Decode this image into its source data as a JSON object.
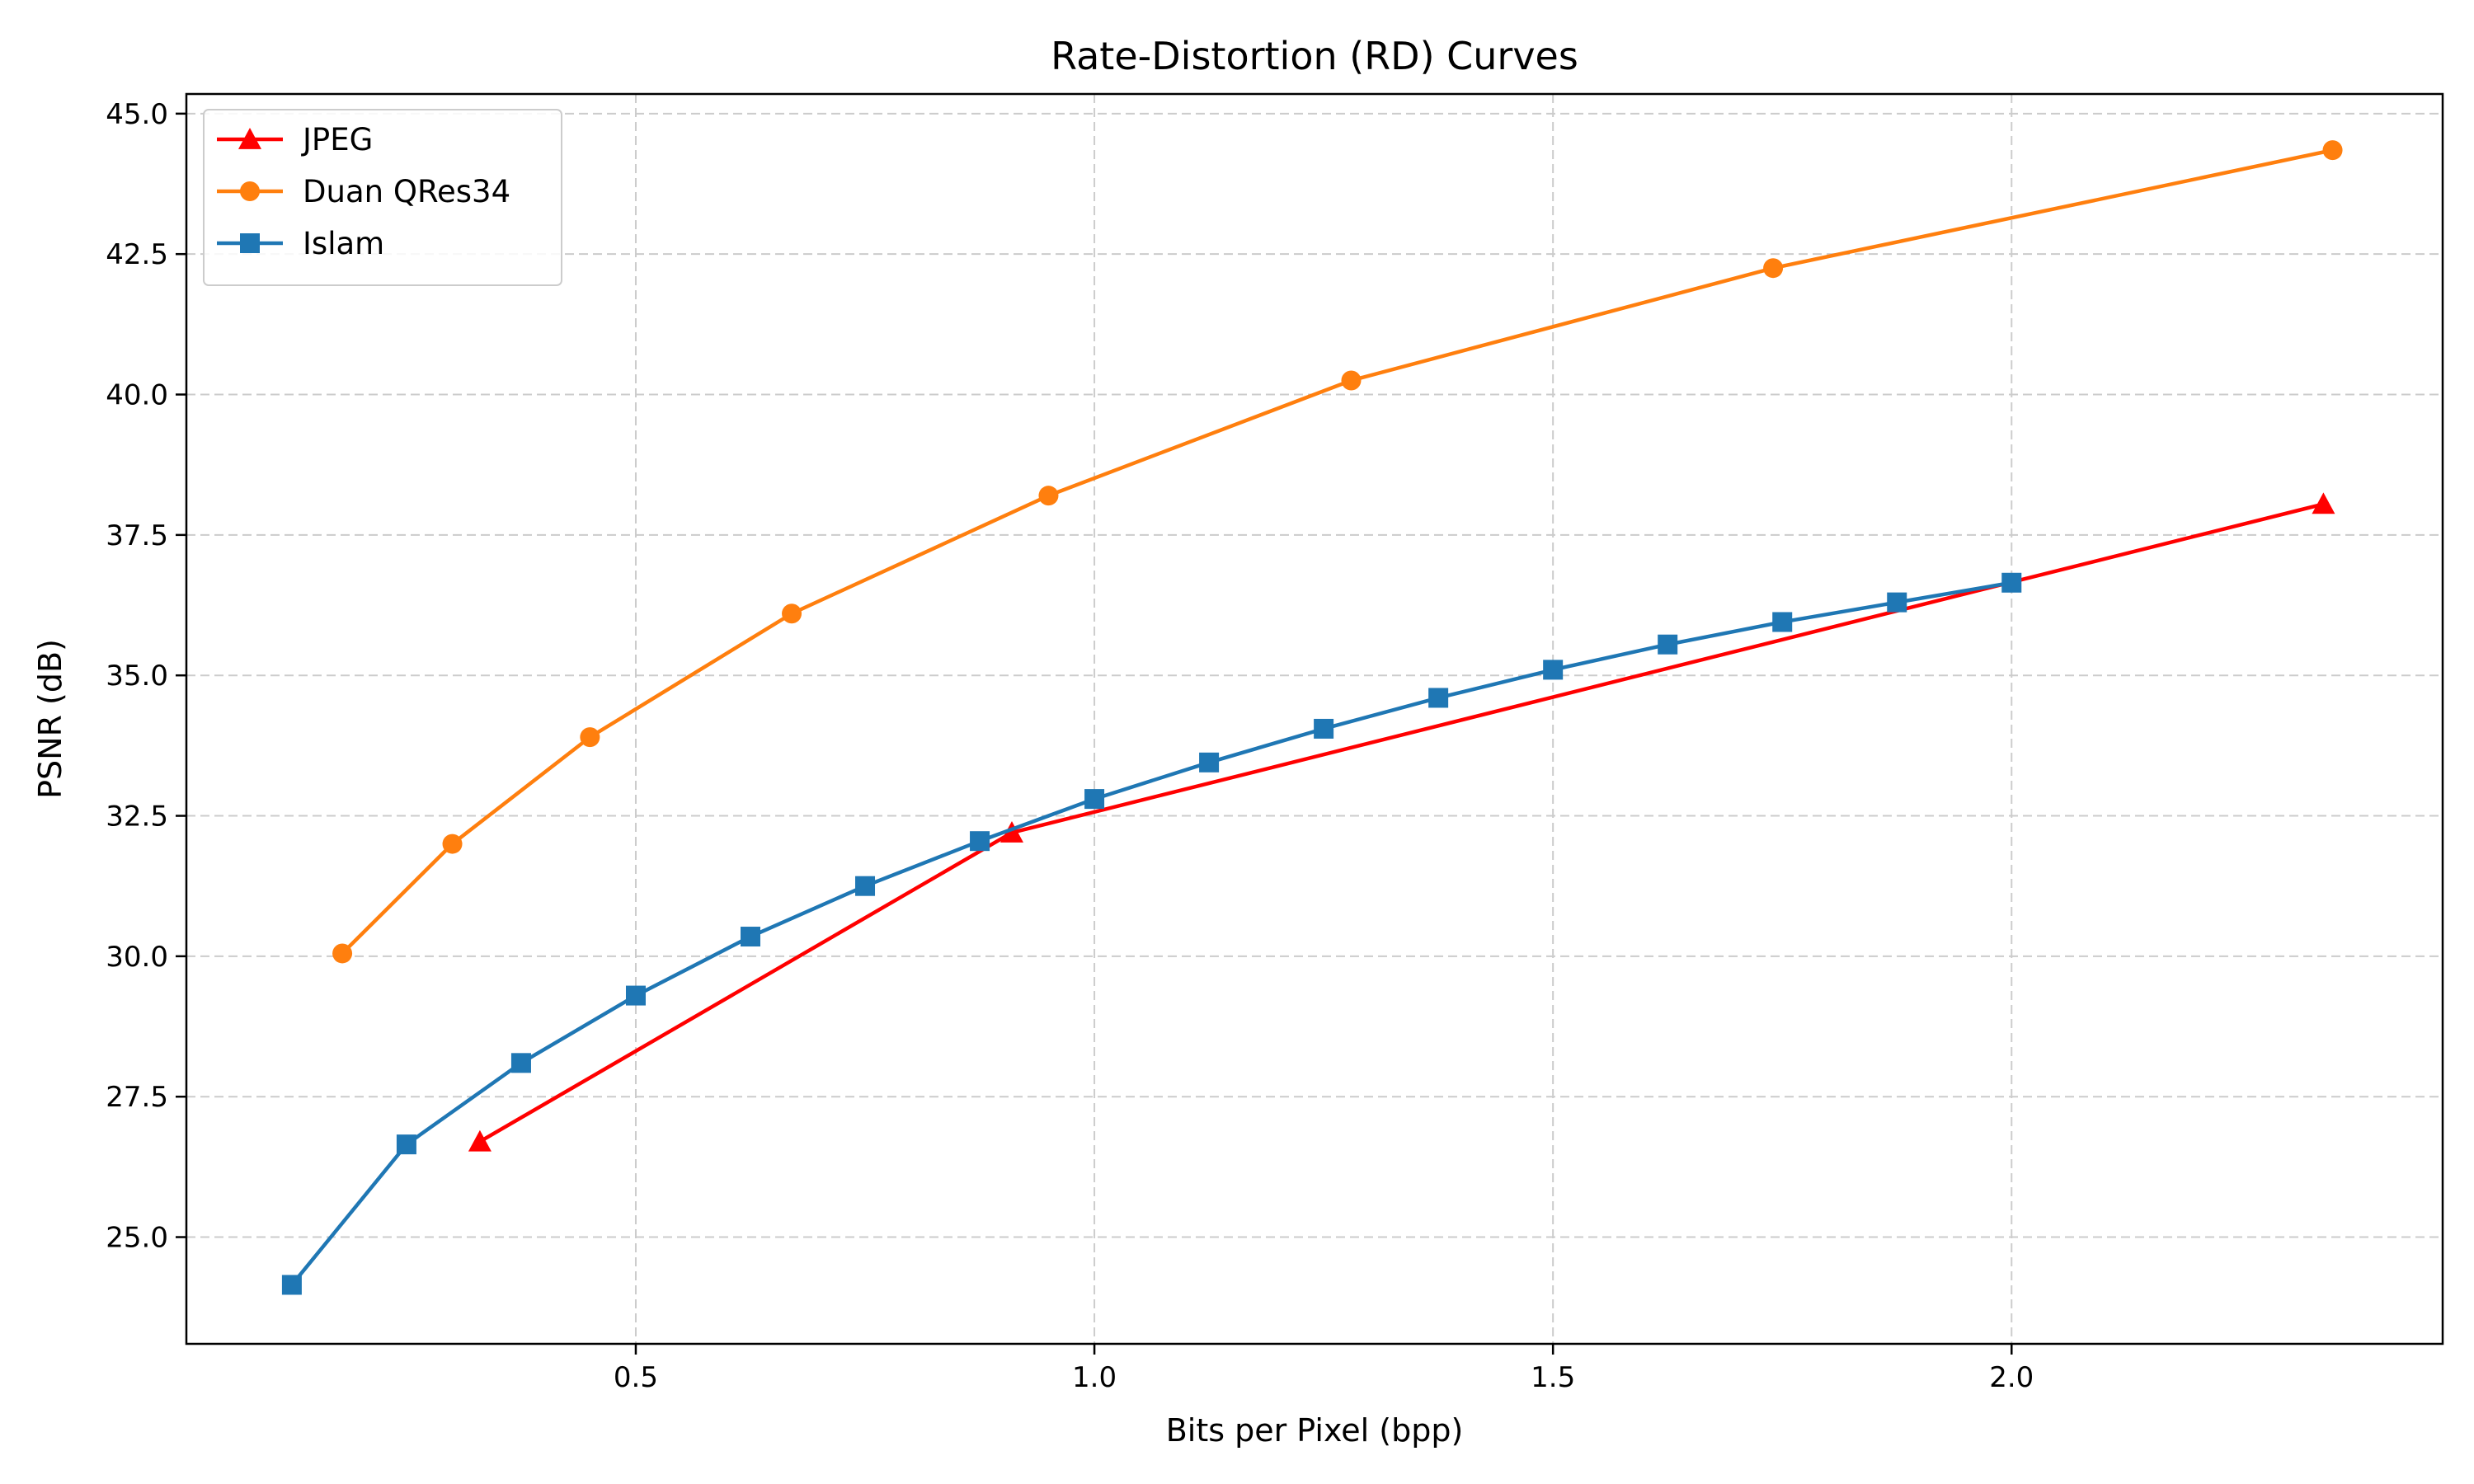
{
  "chart_data": {
    "type": "line",
    "title": "Rate-Distortion (RD) Curves",
    "xlabel": "Bits per Pixel (bpp)",
    "ylabel": "PSNR (dB)",
    "xlim": [
      0.01,
      2.47
    ],
    "ylim": [
      23.1,
      45.35
    ],
    "xticks": [
      0.5,
      1.0,
      1.5,
      2.0
    ],
    "xtick_labels": [
      "0.5",
      "1.0",
      "1.5",
      "2.0"
    ],
    "yticks": [
      25.0,
      27.5,
      30.0,
      32.5,
      35.0,
      37.5,
      40.0,
      42.5,
      45.0
    ],
    "ytick_labels": [
      "25.0",
      "27.5",
      "30.0",
      "32.5",
      "35.0",
      "37.5",
      "40.0",
      "42.5",
      "45.0"
    ],
    "grid": true,
    "legend_position": "upper-left",
    "series": [
      {
        "name": "JPEG",
        "color": "#ff0000",
        "marker": "triangle",
        "x": [
          0.33,
          0.91,
          2.34
        ],
        "y": [
          26.7,
          32.2,
          38.05
        ]
      },
      {
        "name": "Duan QRes34",
        "color": "#ff7f0e",
        "marker": "circle",
        "x": [
          0.18,
          0.3,
          0.45,
          0.67,
          0.95,
          1.28,
          1.74,
          2.35
        ],
        "y": [
          30.05,
          32.0,
          33.9,
          36.1,
          38.2,
          40.25,
          42.25,
          44.35
        ]
      },
      {
        "name": "Islam",
        "color": "#1f77b4",
        "marker": "square",
        "x": [
          0.125,
          0.25,
          0.375,
          0.5,
          0.625,
          0.75,
          0.875,
          1.0,
          1.125,
          1.25,
          1.375,
          1.5,
          1.625,
          1.75,
          1.875,
          2.0
        ],
        "y": [
          24.15,
          26.65,
          28.1,
          29.3,
          30.35,
          31.25,
          32.05,
          32.8,
          33.45,
          34.05,
          34.6,
          35.1,
          35.55,
          35.95,
          36.3,
          36.65
        ]
      }
    ]
  }
}
